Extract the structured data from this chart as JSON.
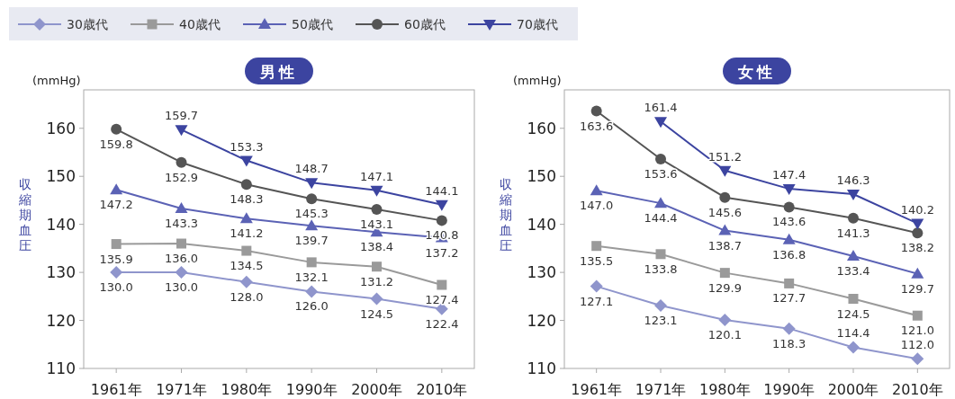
{
  "chart_data": [
    {
      "type": "line",
      "title": "男性",
      "ylabel": "収縮期血圧",
      "annotations": [
        "(mmHg)"
      ],
      "categories": [
        "1961年",
        "1971年",
        "1980年",
        "1990年",
        "2000年",
        "2010年"
      ],
      "ylim": [
        110,
        168
      ],
      "yticks": [
        110,
        120,
        130,
        140,
        150,
        160
      ],
      "legend": "top",
      "series": [
        {
          "name": "30歳代",
          "color": "#8f95cc",
          "marker": "diamond",
          "values": [
            130.0,
            130.0,
            128.0,
            126.0,
            124.5,
            122.4
          ],
          "value_labels": [
            "130.0",
            "130.0",
            "128.0",
            "126.0",
            "124.5",
            "122.4"
          ]
        },
        {
          "name": "40歳代",
          "color": "#9a9a9a",
          "marker": "square",
          "values": [
            135.9,
            136.0,
            134.5,
            132.1,
            131.2,
            127.4
          ],
          "value_labels": [
            "135.9",
            "136.0",
            "134.5",
            "132.1",
            "131.2",
            "127.4"
          ]
        },
        {
          "name": "50歳代",
          "color": "#5b62b5",
          "marker": "triangle",
          "values": [
            147.2,
            143.3,
            141.2,
            139.7,
            138.4,
            137.2
          ],
          "value_labels": [
            "147.2",
            "143.3",
            "141.2",
            "139.7",
            "138.4",
            "137.2"
          ]
        },
        {
          "name": "60歳代",
          "color": "#555555",
          "marker": "circle",
          "values": [
            159.8,
            152.9,
            148.3,
            145.3,
            143.1,
            140.8
          ],
          "value_labels": [
            "159.8",
            "152.9",
            "148.3",
            "145.3",
            "143.1",
            "140.8"
          ]
        },
        {
          "name": "70歳代",
          "color": "#3c44a0",
          "marker": "triangle-down",
          "values": [
            null,
            159.7,
            153.3,
            148.7,
            147.1,
            144.1
          ],
          "value_labels": [
            null,
            "159.7",
            "153.3",
            "148.7",
            "147.1",
            "144.1"
          ]
        }
      ]
    },
    {
      "type": "line",
      "title": "女性",
      "ylabel": "収縮期血圧",
      "annotations": [
        "(mmHg)"
      ],
      "categories": [
        "1961年",
        "1971年",
        "1980年",
        "1990年",
        "2000年",
        "2010年"
      ],
      "ylim": [
        110,
        168
      ],
      "yticks": [
        110,
        120,
        130,
        140,
        150,
        160
      ],
      "series": [
        {
          "color": "#8f95cc",
          "marker": "diamond",
          "values": [
            127.1,
            123.1,
            120.1,
            118.3,
            114.4,
            112.0
          ],
          "value_labels": [
            "127.1",
            "123.1",
            "120.1",
            "118.3",
            "114.4",
            "112.0"
          ]
        },
        {
          "color": "#9a9a9a",
          "marker": "square",
          "values": [
            135.5,
            133.8,
            129.9,
            127.7,
            124.5,
            121.0
          ],
          "value_labels": [
            "135.5",
            "133.8",
            "129.9",
            "127.7",
            "124.5",
            "121.0"
          ]
        },
        {
          "color": "#5b62b5",
          "marker": "triangle",
          "values": [
            147.0,
            144.4,
            138.7,
            136.8,
            133.4,
            129.7
          ],
          "value_labels": [
            "147.0",
            "144.4",
            "138.7",
            "136.8",
            "133.4",
            "129.7"
          ]
        },
        {
          "color": "#555555",
          "marker": "circle",
          "values": [
            163.6,
            153.6,
            145.6,
            143.6,
            141.3,
            138.2
          ],
          "value_labels": [
            "163.6",
            "153.6",
            "145.6",
            "143.6",
            "141.3",
            "138.2"
          ]
        },
        {
          "color": "#3c44a0",
          "marker": "triangle-down",
          "values": [
            null,
            161.4,
            151.2,
            147.4,
            146.3,
            140.2
          ],
          "value_labels": [
            null,
            "161.4",
            "151.2",
            "147.4",
            "146.3",
            "140.2"
          ]
        }
      ]
    }
  ]
}
